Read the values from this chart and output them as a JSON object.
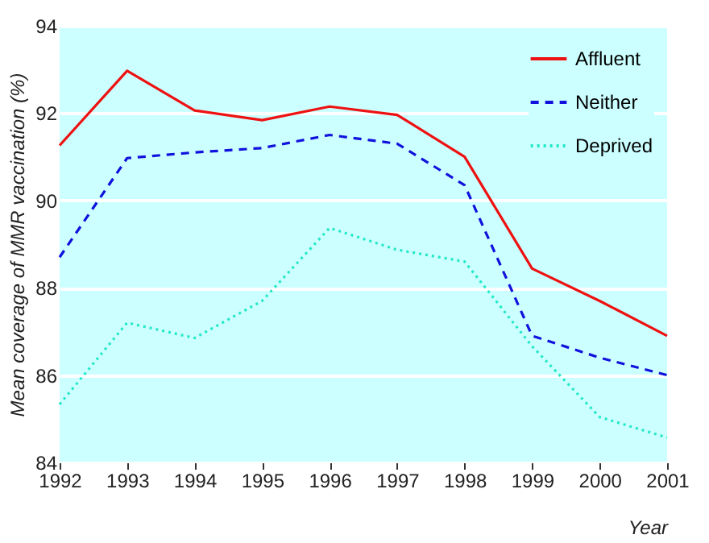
{
  "chart_data": {
    "type": "line",
    "xlabel": "Year",
    "ylabel": "Mean coverage of MMR vaccination (%)",
    "x": [
      1992,
      1993,
      1994,
      1995,
      1996,
      1997,
      1998,
      1999,
      2000,
      2001
    ],
    "series": [
      {
        "name": "Affluent",
        "color": "#ee1111",
        "line_style": "solid",
        "values": [
          91.26,
          92.97,
          92.06,
          91.84,
          92.15,
          91.96,
          91.0,
          88.44,
          87.7,
          86.9
        ]
      },
      {
        "name": "Neither",
        "color": "#1111dd",
        "line_style": "dashed",
        "values": [
          88.7,
          90.97,
          91.1,
          91.2,
          91.5,
          91.3,
          90.35,
          86.9,
          86.4,
          86.0
        ]
      },
      {
        "name": "Deprived",
        "color": "#22e8c8",
        "line_style": "dotted",
        "values": [
          85.33,
          87.2,
          86.85,
          87.7,
          89.37,
          88.87,
          88.6,
          86.66,
          85.04,
          84.57
        ]
      }
    ],
    "xlim": [
      1992,
      2001
    ],
    "xticks": [
      1992,
      1993,
      1994,
      1995,
      1996,
      1997,
      1998,
      1999,
      2000,
      2001
    ],
    "ylim": [
      84,
      94
    ],
    "yticks": [
      84,
      86,
      88,
      90,
      92,
      94
    ],
    "grid": "y",
    "legend": "top right",
    "marker": "none"
  }
}
